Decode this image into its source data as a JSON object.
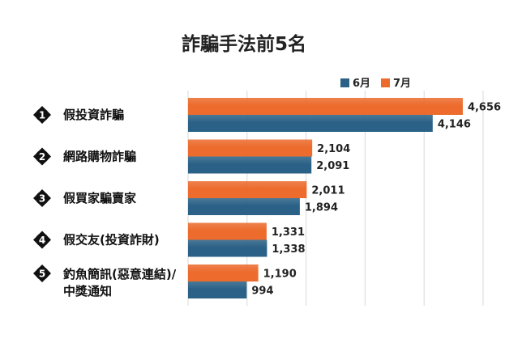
{
  "chart_data": {
    "type": "bar",
    "orientation": "horizontal",
    "title": "詐騙手法前5名",
    "categories": [
      [
        "假投資詐騙"
      ],
      [
        "網路購物詐騙"
      ],
      [
        "假買家騙賣家"
      ],
      [
        "假交友(投資詐財)"
      ],
      [
        "釣魚簡訊(惡意連結)/",
        "中獎通知"
      ]
    ],
    "rank_badges": [
      "1",
      "2",
      "3",
      "4",
      "5"
    ],
    "series": [
      {
        "name": "7月",
        "color": "#ec6b2d",
        "values": [
          4656,
          2104,
          2011,
          1331,
          1190
        ],
        "value_labels": [
          "4,656",
          "2,104",
          "2,011",
          "1,331",
          "1,190"
        ]
      },
      {
        "name": "6月",
        "color": "#2b6186",
        "values": [
          4146,
          2091,
          1894,
          1338,
          994
        ],
        "value_labels": [
          "4,146",
          "2,091",
          "1,894",
          "1,338",
          "994"
        ]
      }
    ],
    "legend_order": [
      "6月",
      "7月"
    ],
    "legend_position": "top-right",
    "xlim": [
      0,
      5000
    ],
    "grid": "vertical",
    "badge_color": "#111111"
  }
}
